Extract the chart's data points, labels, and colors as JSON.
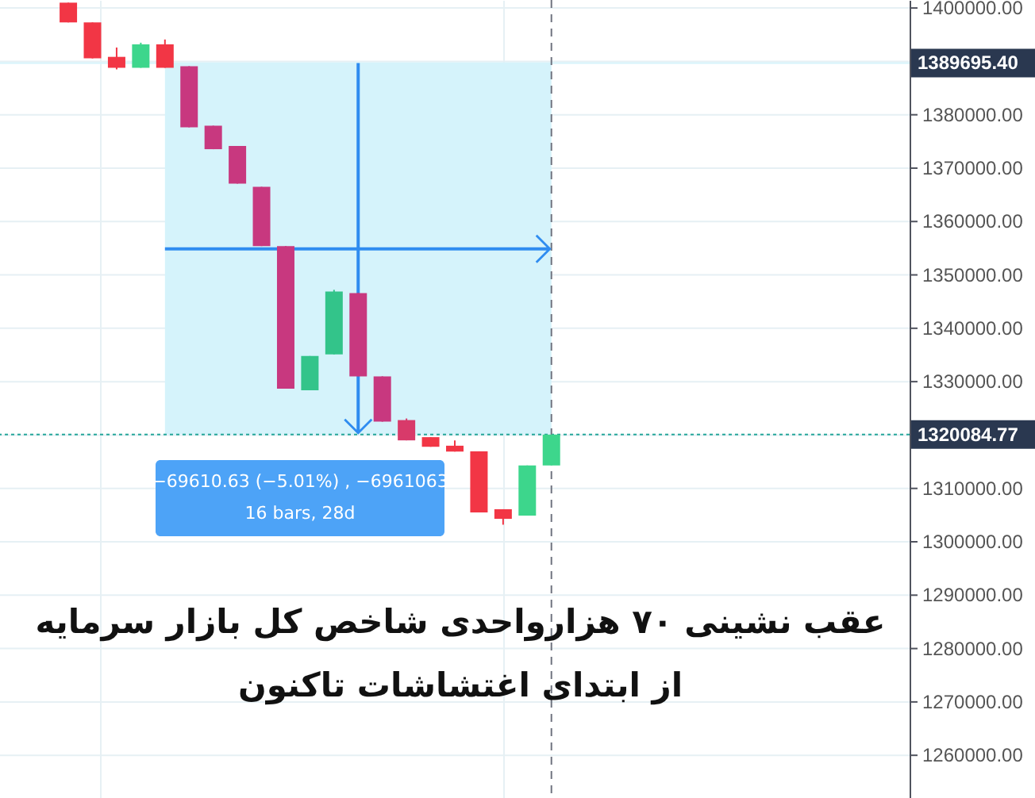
{
  "chart_data": {
    "type": "candlestick",
    "title": "عقب نشینی ۷۰ هزارواحدی شاخص کل بازار سرمایه\nاز ابتدای اغتشاشات تاکنون",
    "categories": [
      null,
      null,
      null,
      null,
      null,
      null,
      null,
      null,
      null,
      null,
      null,
      null,
      null,
      null,
      null,
      null,
      null,
      null,
      null,
      null,
      null,
      null,
      null,
      null,
      null,
      null,
      null,
      null,
      null,
      null,
      null,
      null,
      null,
      null,
      null,
      null,
      null
    ],
    "ohlc": [
      null,
      null,
      [
        1401000,
        1401000,
        1397300,
        1397300
      ],
      [
        1397300,
        1397300,
        1390560,
        1390560
      ],
      [
        1390850,
        1392600,
        1388500,
        1388800
      ],
      [
        1388800,
        1393500,
        1388800,
        1393200
      ],
      [
        1393200,
        1394100,
        1388800,
        1388800
      ],
      [
        1389100,
        1389100,
        1377650,
        1377650
      ],
      [
        1377950,
        1377950,
        1373550,
        1373550
      ],
      [
        1374150,
        1374150,
        1367100,
        1367100
      ],
      [
        1366500,
        1366500,
        1355400,
        1355400
      ],
      [
        1355400,
        1355400,
        1328700,
        1328700
      ],
      [
        1328400,
        1334800,
        1328400,
        1334800
      ],
      [
        1335100,
        1347200,
        1335100,
        1346900
      ],
      [
        1346600,
        1346600,
        1331000,
        1331000
      ],
      [
        1331000,
        1331000,
        1322500,
        1322500
      ],
      [
        1322800,
        1323100,
        1319000,
        1319000
      ],
      [
        1319600,
        1319600,
        1317800,
        1317800
      ],
      [
        1318000,
        1319000,
        1316900,
        1316900
      ],
      [
        1316950,
        1316950,
        1305500,
        1305500
      ],
      [
        1306100,
        1306100,
        1303200,
        1304300
      ],
      [
        1304900,
        1314300,
        1304900,
        1314300
      ],
      [
        1314300,
        1320084.77,
        1314300,
        1320084.77
      ],
      null,
      null,
      null,
      null,
      null,
      null,
      null,
      null,
      null,
      null,
      null,
      null,
      null,
      null
    ],
    "colors": [
      null,
      null,
      "#f23645",
      "#f23645",
      "#f23645",
      "#3dd68c",
      "#f23645",
      "#c8387f",
      "#c8387f",
      "#c8387f",
      "#c8387f",
      "#c8387f",
      "#33c48a",
      "#33c48a",
      "#c8387f",
      "#c8387f",
      "#d83a6a",
      "#f23645",
      "#f23645",
      "#f23645",
      "#f23645",
      "#3dd68c",
      "#3dd68c",
      null,
      null,
      null,
      null,
      null,
      null,
      null,
      null,
      null,
      null,
      null,
      null,
      null,
      null
    ],
    "ylim": [
      1252000,
      1401500
    ],
    "yticks": [
      {
        "value": 1260000,
        "label": "1260000.00"
      },
      {
        "value": 1270000,
        "label": "1270000.00"
      },
      {
        "value": 1280000,
        "label": "1280000.00"
      },
      {
        "value": 1290000,
        "label": "1290000.00"
      },
      {
        "value": 1300000,
        "label": "1300000.00"
      },
      {
        "value": 1310000,
        "label": "1310000.00"
      },
      {
        "value": 1320000,
        "label": null
      },
      {
        "value": 1330000,
        "label": "1330000.00"
      },
      {
        "value": 1340000,
        "label": "1340000.00"
      },
      {
        "value": 1350000,
        "label": "1350000.00"
      },
      {
        "value": 1360000,
        "label": "1360000.00"
      },
      {
        "value": 1370000,
        "label": "1370000.00"
      },
      {
        "value": 1380000,
        "label": "1380000.00"
      },
      {
        "value": 1390000,
        "label": null
      },
      {
        "value": 1400000,
        "label": "1400000.00"
      }
    ],
    "bands": [
      {
        "axis": "y",
        "from": 1320084.77,
        "to": 1389695.4,
        "label": "−69610.63 (−5.01%) , −6961063\n16 bars, 28d",
        "color": "#d5f3fb"
      }
    ],
    "ref_lines": [
      {
        "axis": "y",
        "value": 1320084.77,
        "label": "1320084.77",
        "color": "#26a69a",
        "line_style": "dotted"
      },
      {
        "axis": "y",
        "value": 1389695.4,
        "label": "1389695.40",
        "color": "#d5f3fb",
        "line_style": "solid"
      }
    ],
    "grid": true
  }
}
